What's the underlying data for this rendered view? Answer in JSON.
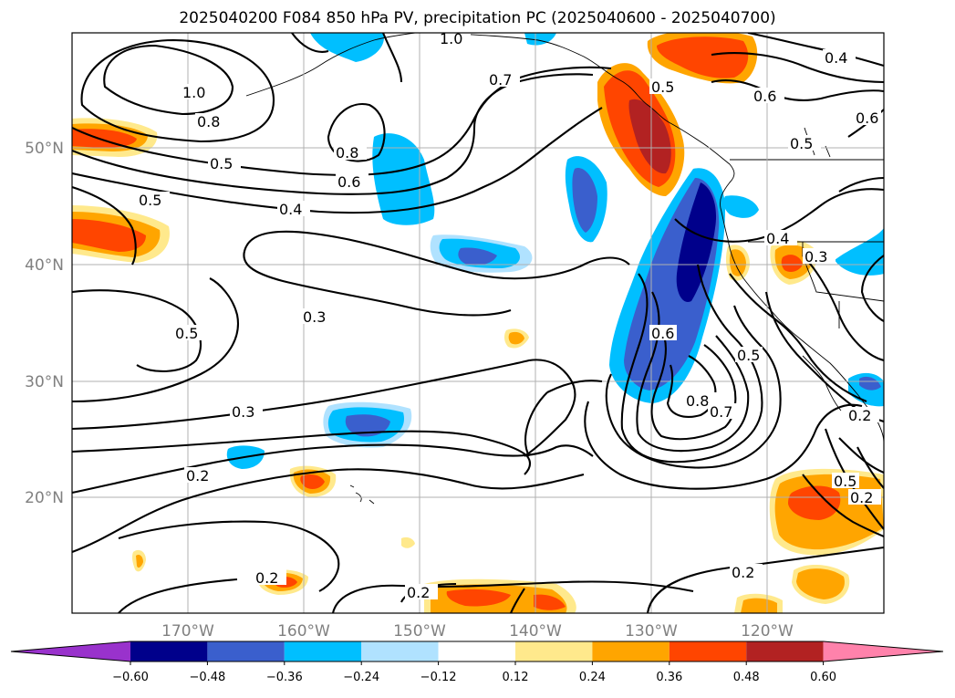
{
  "title": "2025040200 F084 850 hPa PV, precipitation PC (2025040600 - 2025040700)",
  "map": {
    "lon_labels": [
      "170°W",
      "160°W",
      "150°W",
      "140°W",
      "130°W",
      "120°W"
    ],
    "lat_labels": [
      "50°N",
      "40°N",
      "30°N",
      "20°N"
    ],
    "contour_labels": [
      "1.0",
      "1.0",
      "0.8",
      "0.8",
      "0.7",
      "0.5",
      "0.5",
      "0.6",
      "0.4",
      "0.6",
      "0.5",
      "0.5",
      "0.4",
      "0.3",
      "0.5",
      "0.3",
      "0.3",
      "0.6",
      "0.5",
      "0.8",
      "0.7",
      "0.2",
      "0.2",
      "0.2",
      "0.2",
      "0.2",
      "0.5",
      "0.6",
      "0.2",
      "0.4"
    ],
    "grid": true
  },
  "colorbar": {
    "ticks": [
      "−0.60",
      "−0.48",
      "−0.36",
      "−0.24",
      "−0.12",
      "0.12",
      "0.24",
      "0.36",
      "0.48",
      "0.60"
    ],
    "colors": [
      "#9932cc",
      "#00008b",
      "#3a5fcd",
      "#00bfff",
      "#b0e2ff",
      "#ffffff",
      "#ffe98c",
      "#ffa500",
      "#ff4500",
      "#b22222",
      "#ff82ab"
    ]
  }
}
